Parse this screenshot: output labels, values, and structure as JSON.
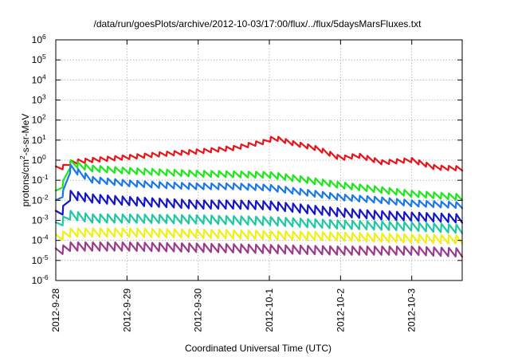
{
  "chart_data": {
    "type": "line",
    "title": "/data/run/goesPlots/archive/2012-10-03/17:00/flux/../flux/5daysMarsFluxes.txt",
    "xlabel": "Coordinated Universal Time (UTC)",
    "ylabel_main": "protons/cm",
    "ylabel_sup": "2",
    "ylabel_rest": "-s-sr-MeV",
    "y_scale": "log",
    "ylim": [
      1e-06,
      1000000.0
    ],
    "y_ticks": [
      {
        "base": "10",
        "exp": "6",
        "value": 1000000.0
      },
      {
        "base": "10",
        "exp": "5",
        "value": 100000.0
      },
      {
        "base": "10",
        "exp": "4",
        "value": 10000.0
      },
      {
        "base": "10",
        "exp": "3",
        "value": 1000.0
      },
      {
        "base": "10",
        "exp": "2",
        "value": 100.0
      },
      {
        "base": "10",
        "exp": "1",
        "value": 10.0
      },
      {
        "base": "10",
        "exp": "0",
        "value": 1
      },
      {
        "base": "10",
        "exp": "-1",
        "value": 0.1
      },
      {
        "base": "10",
        "exp": "-2",
        "value": 0.01
      },
      {
        "base": "10",
        "exp": "-3",
        "value": 0.001
      },
      {
        "base": "10",
        "exp": "-4",
        "value": 0.0001
      },
      {
        "base": "10",
        "exp": "-5",
        "value": 1e-05
      },
      {
        "base": "10",
        "exp": "-6",
        "value": 1e-06
      }
    ],
    "xlim": [
      "2012-09-28T00:00",
      "2012-10-03T17:00"
    ],
    "x_ticks": [
      {
        "label": "2012-9-28",
        "date": "2012-09-28T00:00"
      },
      {
        "label": "2012-9-29",
        "date": "2012-09-29T00:00"
      },
      {
        "label": "2012-9-30",
        "date": "2012-09-30T00:00"
      },
      {
        "label": "2012-10-1",
        "date": "2012-10-01T00:00"
      },
      {
        "label": "2012-10-2",
        "date": "2012-10-02T00:00"
      },
      {
        "label": "2012-10-3",
        "date": "2012-10-03T00:00"
      }
    ],
    "grid": true,
    "legend": "none",
    "series": [
      {
        "color": "#e8151b",
        "points": [
          [
            "2012-09-28T00:00",
            0.5
          ],
          [
            "2012-09-28T03:00",
            0.6
          ],
          [
            "2012-09-28T05:00",
            1.0
          ],
          [
            "2012-09-28T12:00",
            1.3
          ],
          [
            "2012-09-29T00:00",
            1.8
          ],
          [
            "2012-09-29T12:00",
            2.6
          ],
          [
            "2012-09-30T00:00",
            3.5
          ],
          [
            "2012-09-30T12:00",
            5.2
          ],
          [
            "2012-10-01T00:00",
            12
          ],
          [
            "2012-10-01T01:00",
            18
          ],
          [
            "2012-10-01T08:00",
            9
          ],
          [
            "2012-10-01T16:00",
            5
          ],
          [
            "2012-10-02T00:00",
            1.6
          ],
          [
            "2012-10-02T06:00",
            2.2
          ],
          [
            "2012-10-02T14:00",
            1.0
          ],
          [
            "2012-10-03T00:00",
            1.3
          ],
          [
            "2012-10-03T08:00",
            0.55
          ],
          [
            "2012-10-03T17:00",
            0.5
          ]
        ]
      },
      {
        "color": "#1ee81a",
        "points": [
          [
            "2012-09-28T00:00",
            0.03
          ],
          [
            "2012-09-28T03:00",
            0.12
          ],
          [
            "2012-09-28T05:00",
            1.0
          ],
          [
            "2012-09-28T12:00",
            0.55
          ],
          [
            "2012-09-29T00:00",
            0.42
          ],
          [
            "2012-09-29T12:00",
            0.35
          ],
          [
            "2012-09-30T00:00",
            0.3
          ],
          [
            "2012-09-30T12:00",
            0.28
          ],
          [
            "2012-10-01T00:00",
            0.26
          ],
          [
            "2012-10-01T12:00",
            0.15
          ],
          [
            "2012-10-02T00:00",
            0.08
          ],
          [
            "2012-10-02T12:00",
            0.05
          ],
          [
            "2012-10-03T00:00",
            0.03
          ],
          [
            "2012-10-03T17:00",
            0.02
          ]
        ]
      },
      {
        "color": "#1a78e8",
        "points": [
          [
            "2012-09-28T00:00",
            0.01
          ],
          [
            "2012-09-28T03:00",
            0.04
          ],
          [
            "2012-09-28T05:00",
            0.6
          ],
          [
            "2012-09-28T12:00",
            0.15
          ],
          [
            "2012-09-29T00:00",
            0.1
          ],
          [
            "2012-09-29T12:00",
            0.08
          ],
          [
            "2012-09-30T00:00",
            0.07
          ],
          [
            "2012-09-30T12:00",
            0.07
          ],
          [
            "2012-10-01T00:00",
            0.06
          ],
          [
            "2012-10-01T12:00",
            0.035
          ],
          [
            "2012-10-02T00:00",
            0.02
          ],
          [
            "2012-10-02T12:00",
            0.015
          ],
          [
            "2012-10-03T00:00",
            0.01
          ],
          [
            "2012-10-03T17:00",
            0.008
          ]
        ]
      },
      {
        "color": "#1414c8",
        "points": [
          [
            "2012-09-28T00:00",
            0.003
          ],
          [
            "2012-09-28T03:00",
            0.006
          ],
          [
            "2012-09-28T05:00",
            0.03
          ],
          [
            "2012-09-28T12:00",
            0.02
          ],
          [
            "2012-09-29T00:00",
            0.015
          ],
          [
            "2012-09-29T12:00",
            0.012
          ],
          [
            "2012-09-30T00:00",
            0.01
          ],
          [
            "2012-09-30T12:00",
            0.01
          ],
          [
            "2012-10-01T00:00",
            0.009
          ],
          [
            "2012-10-01T12:00",
            0.006
          ],
          [
            "2012-10-02T00:00",
            0.004
          ],
          [
            "2012-10-02T12:00",
            0.003
          ],
          [
            "2012-10-03T00:00",
            0.0025
          ],
          [
            "2012-10-03T17:00",
            0.002
          ]
        ]
      },
      {
        "color": "#1ec8a0",
        "points": [
          [
            "2012-09-28T00:00",
            0.0008
          ],
          [
            "2012-09-28T05:00",
            0.003
          ],
          [
            "2012-09-28T12:00",
            0.002
          ],
          [
            "2012-09-29T00:00",
            0.002
          ],
          [
            "2012-09-30T00:00",
            0.0018
          ],
          [
            "2012-10-01T00:00",
            0.0015
          ],
          [
            "2012-10-01T12:00",
            0.0012
          ],
          [
            "2012-10-02T00:00",
            0.001
          ],
          [
            "2012-10-03T00:00",
            0.0008
          ],
          [
            "2012-10-03T17:00",
            0.0006
          ]
        ]
      },
      {
        "color": "#f0f014",
        "points": [
          [
            "2012-09-28T00:00",
            0.0002
          ],
          [
            "2012-09-28T05:00",
            0.0004
          ],
          [
            "2012-09-29T00:00",
            0.0004
          ],
          [
            "2012-09-30T00:00",
            0.00035
          ],
          [
            "2012-10-01T00:00",
            0.0003
          ],
          [
            "2012-10-02T00:00",
            0.00025
          ],
          [
            "2012-10-03T00:00",
            0.0002
          ],
          [
            "2012-10-03T17:00",
            0.00018
          ]
        ]
      },
      {
        "color": "#9b3a8a",
        "points": [
          [
            "2012-09-28T00:00",
            4e-05
          ],
          [
            "2012-09-28T05:00",
            8e-05
          ],
          [
            "2012-09-29T00:00",
            8e-05
          ],
          [
            "2012-09-30T00:00",
            7e-05
          ],
          [
            "2012-10-01T00:00",
            6e-05
          ],
          [
            "2012-10-02T00:00",
            5e-05
          ],
          [
            "2012-10-03T00:00",
            5e-05
          ],
          [
            "2012-10-03T17:00",
            4e-05
          ]
        ]
      }
    ]
  }
}
